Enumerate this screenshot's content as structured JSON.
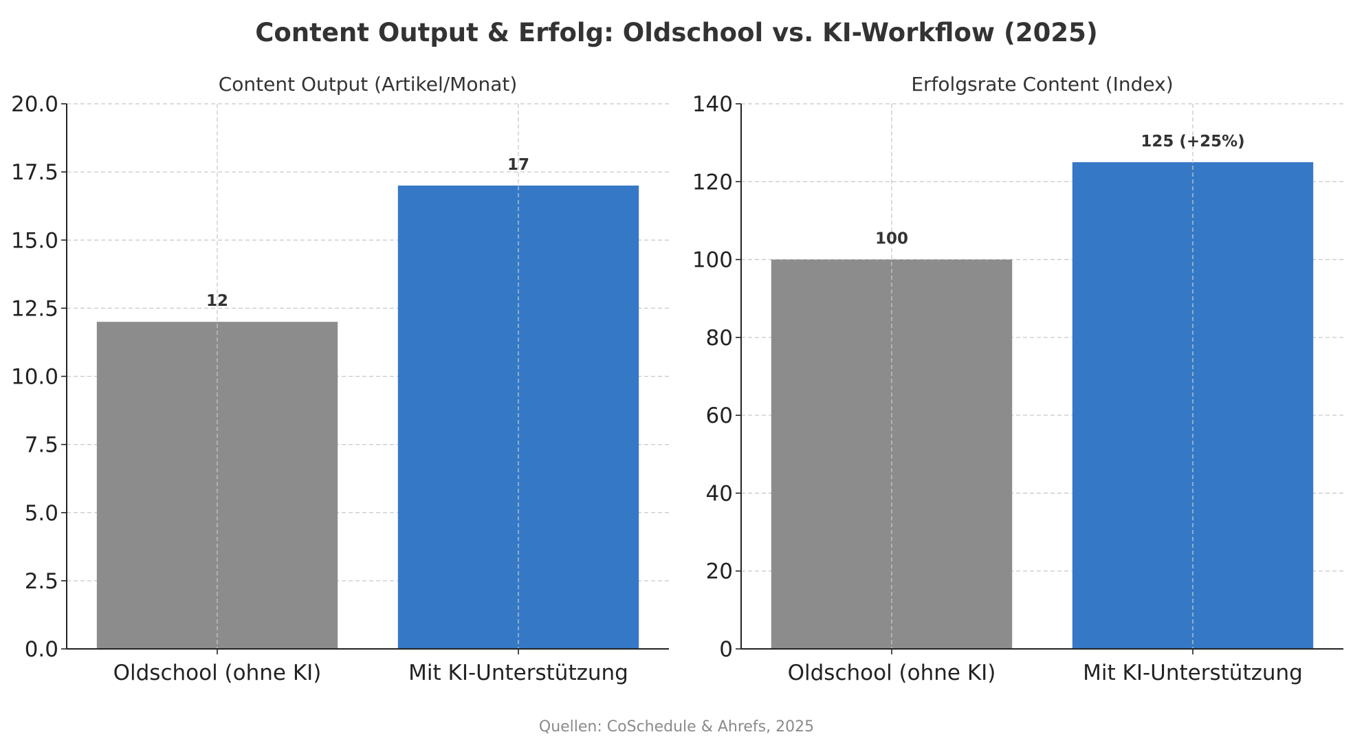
{
  "figure": {
    "title": "Content Output & Erfolg: Oldschool vs. KI-Workflow (2025)",
    "source": "Quellen: CoSchedule & Ahrefs, 2025"
  },
  "chart_data": [
    {
      "type": "bar",
      "title": "Content Output (Artikel/Monat)",
      "xlabel": "",
      "ylabel": "",
      "categories": [
        "Oldschool (ohne KI)",
        "Mit KI-Unterstützung"
      ],
      "values": [
        12,
        17
      ],
      "value_labels": [
        "12",
        "17"
      ],
      "bar_colors": [
        "#8c8c8c",
        "#3578c6"
      ],
      "ylim": [
        0,
        20
      ],
      "yticks": [
        0,
        2.5,
        5,
        7.5,
        10,
        12.5,
        15,
        17.5,
        20
      ],
      "ytick_labels": [
        "0.0",
        "2.5",
        "5.0",
        "7.5",
        "10.0",
        "12.5",
        "15.0",
        "17.5",
        "20.0"
      ],
      "grid": true
    },
    {
      "type": "bar",
      "title": "Erfolgsrate Content (Index)",
      "xlabel": "",
      "ylabel": "",
      "categories": [
        "Oldschool (ohne KI)",
        "Mit KI-Unterstützung"
      ],
      "values": [
        100,
        125
      ],
      "value_labels": [
        "100",
        "125 (+25%)"
      ],
      "bar_colors": [
        "#8c8c8c",
        "#3578c6"
      ],
      "ylim": [
        0,
        140
      ],
      "yticks": [
        0,
        20,
        40,
        60,
        80,
        100,
        120,
        140
      ],
      "ytick_labels": [
        "0",
        "20",
        "40",
        "60",
        "80",
        "100",
        "120",
        "140"
      ],
      "grid": true
    }
  ]
}
